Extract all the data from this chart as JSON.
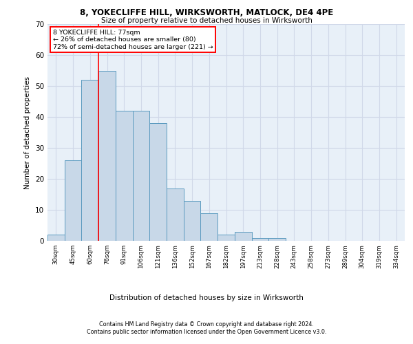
{
  "title1": "8, YOKECLIFFE HILL, WIRKSWORTH, MATLOCK, DE4 4PE",
  "title2": "Size of property relative to detached houses in Wirksworth",
  "xlabel": "Distribution of detached houses by size in Wirksworth",
  "ylabel": "Number of detached properties",
  "categories": [
    "30sqm",
    "45sqm",
    "60sqm",
    "76sqm",
    "91sqm",
    "106sqm",
    "121sqm",
    "136sqm",
    "152sqm",
    "167sqm",
    "182sqm",
    "197sqm",
    "213sqm",
    "228sqm",
    "243sqm",
    "258sqm",
    "273sqm",
    "289sqm",
    "304sqm",
    "319sqm",
    "334sqm"
  ],
  "values": [
    2,
    26,
    52,
    55,
    42,
    42,
    38,
    17,
    13,
    9,
    2,
    3,
    1,
    1,
    0,
    0,
    0,
    0,
    0,
    0,
    0
  ],
  "bar_color": "#c8d8e8",
  "bar_edge_color": "#5a9abf",
  "bar_width": 1.0,
  "ylim": [
    0,
    70
  ],
  "yticks": [
    0,
    10,
    20,
    30,
    40,
    50,
    60,
    70
  ],
  "grid_color": "#d0d8e8",
  "bg_color": "#e8f0f8",
  "annotation_text_line1": "8 YOKECLIFFE HILL: 77sqm",
  "annotation_text_line2": "← 26% of detached houses are smaller (80)",
  "annotation_text_line3": "72% of semi-detached houses are larger (221) →",
  "red_line_bin_index": 3,
  "footer1": "Contains HM Land Registry data © Crown copyright and database right 2024.",
  "footer2": "Contains public sector information licensed under the Open Government Licence v3.0."
}
